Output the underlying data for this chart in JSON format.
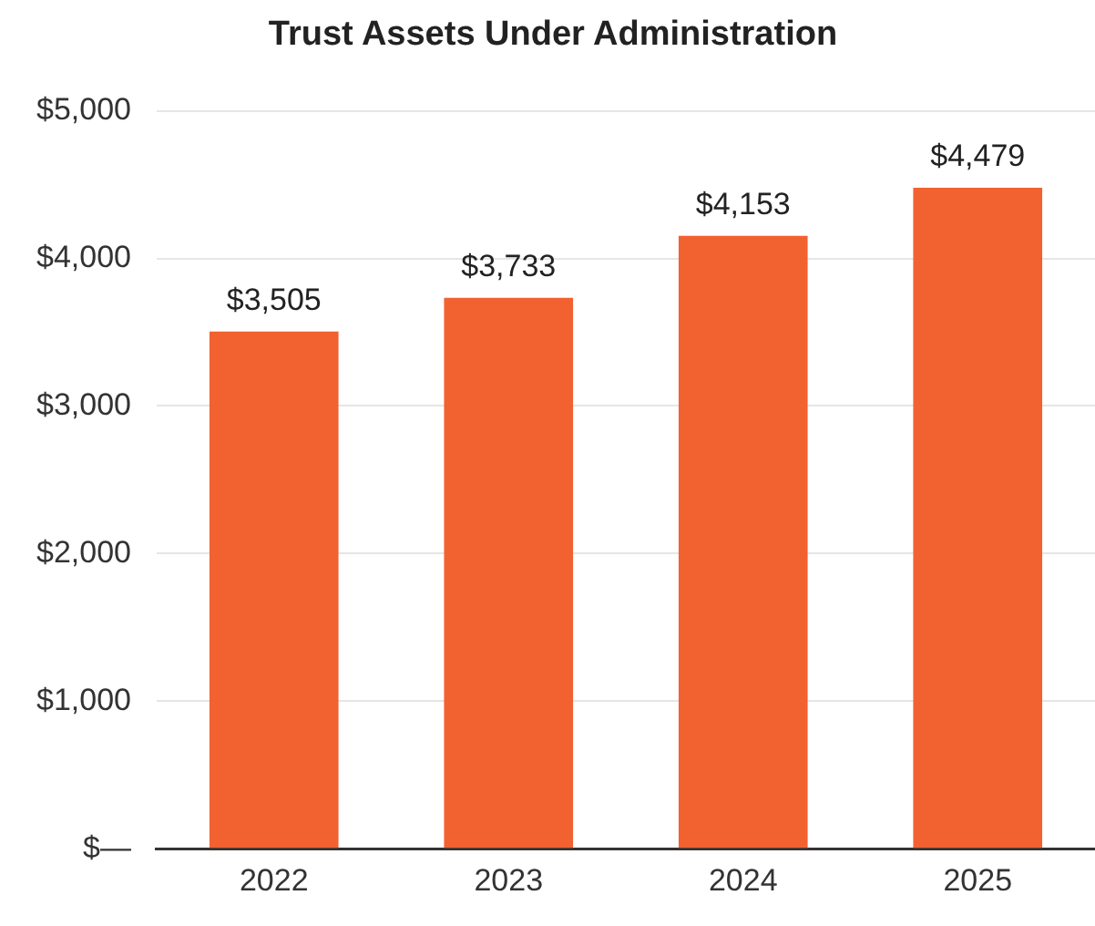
{
  "chart_data": {
    "type": "bar",
    "title": "Trust Assets Under Administration",
    "categories": [
      "2022",
      "2023",
      "2024",
      "2025"
    ],
    "values": [
      3505,
      3733,
      4153,
      4479
    ],
    "value_labels": [
      "$3,505",
      "$3,733",
      "$4,153",
      "$4,479"
    ],
    "color": "#f26130",
    "ylim": [
      0,
      5000
    ],
    "yticks": [
      {
        "value": 0,
        "label": "$—"
      },
      {
        "value": 1000,
        "label": "$1,000"
      },
      {
        "value": 2000,
        "label": "$2,000"
      },
      {
        "value": 3000,
        "label": "$3,000"
      },
      {
        "value": 4000,
        "label": "$4,000"
      },
      {
        "value": 5000,
        "label": "$5,000"
      }
    ],
    "grid": "y",
    "legend": false
  }
}
